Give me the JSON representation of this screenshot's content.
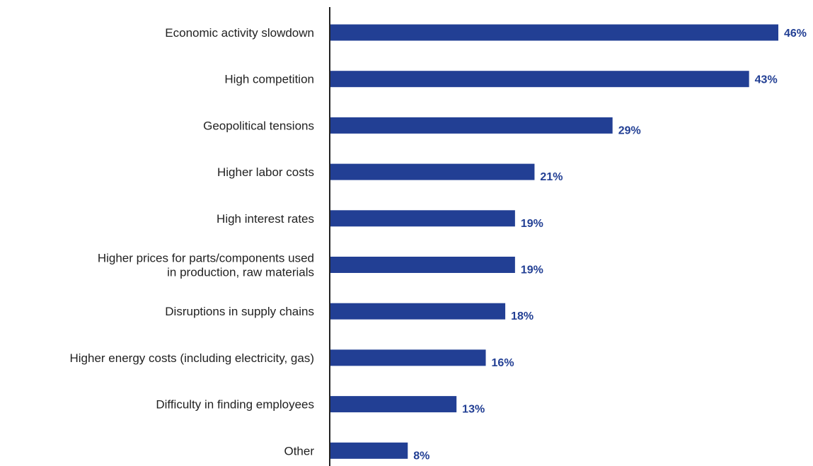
{
  "chart_data": {
    "type": "bar",
    "orientation": "horizontal",
    "categories": [
      "Economic activity slowdown",
      "High competition",
      "Geopolitical tensions",
      "Higher labor costs",
      "High interest rates",
      "Higher prices for parts/components used in production,  raw materials",
      "Disruptions in supply chains",
      "Higher energy costs (including electricity, gas)",
      "Difficulty in finding employees",
      "Other"
    ],
    "category_lines": [
      [
        "Economic activity slowdown"
      ],
      [
        "High competition"
      ],
      [
        "Geopolitical tensions"
      ],
      [
        "Higher labor costs"
      ],
      [
        "High interest rates"
      ],
      [
        "Higher prices for parts/components used",
        "in production,  raw materials"
      ],
      [
        "Disruptions in supply chains"
      ],
      [
        "Higher energy costs (including electricity, gas)"
      ],
      [
        "Difficulty in finding employees"
      ],
      [
        "Other"
      ]
    ],
    "values": [
      46,
      43,
      29,
      21,
      19,
      19,
      18,
      16,
      13,
      8
    ],
    "value_labels": [
      "46%",
      "43%",
      "29%",
      "21%",
      "19%",
      "19%",
      "18%",
      "16%",
      "13%",
      "8%"
    ],
    "unit": "%",
    "xlim": [
      0,
      46
    ],
    "grid": false,
    "legend": "none",
    "title": "",
    "xlabel": "",
    "ylabel": ""
  },
  "colors": {
    "bar": "#223f94",
    "value_label": "#223f94",
    "axis": "#222222",
    "category_label": "#222222"
  }
}
